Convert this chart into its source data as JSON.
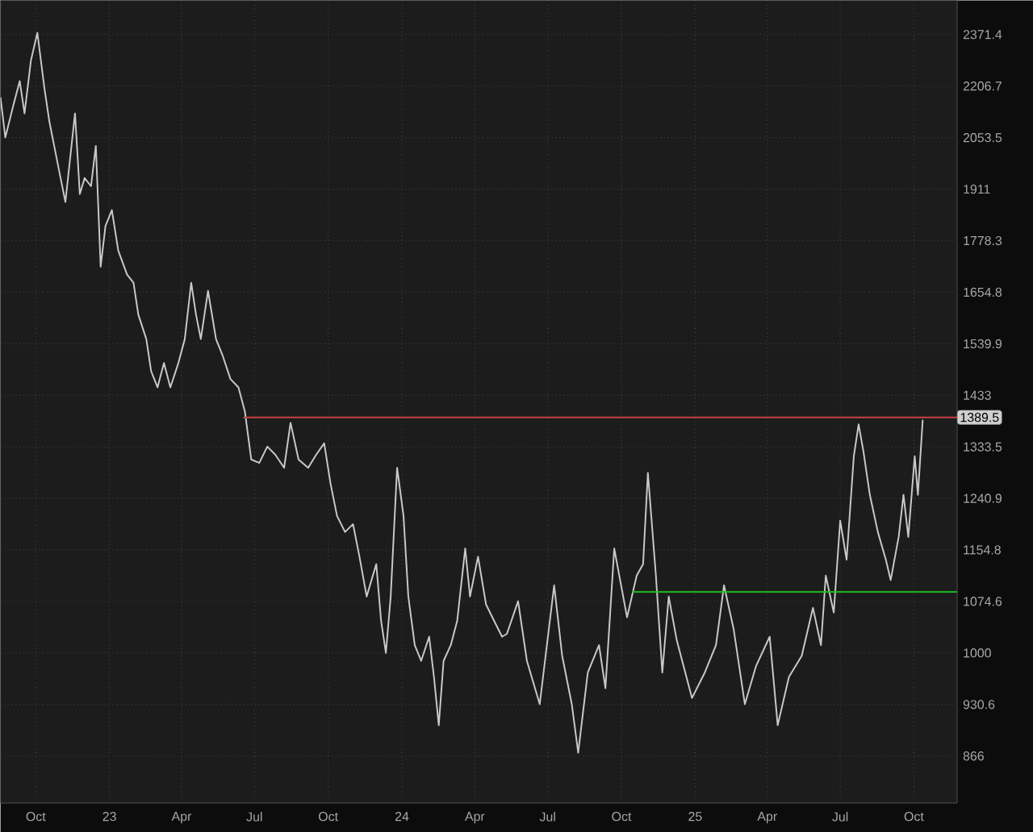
{
  "chart_data": {
    "type": "line",
    "log": true,
    "grid": true,
    "xlim": [
      "2022-08-18",
      "2025-11-24"
    ],
    "ylim": [
      811,
      2487
    ],
    "xticks": [
      {
        "value": "2022-10-01",
        "label": "Oct"
      },
      {
        "value": "2023-01-01",
        "label": "23"
      },
      {
        "value": "2023-04-01",
        "label": "Apr"
      },
      {
        "value": "2023-07-01",
        "label": "Jul"
      },
      {
        "value": "2023-10-01",
        "label": "Oct"
      },
      {
        "value": "2024-01-01",
        "label": "24"
      },
      {
        "value": "2024-04-01",
        "label": "Apr"
      },
      {
        "value": "2024-07-01",
        "label": "Jul"
      },
      {
        "value": "2024-10-01",
        "label": "Oct"
      },
      {
        "value": "2025-01-01",
        "label": "25"
      },
      {
        "value": "2025-04-01",
        "label": "Apr"
      },
      {
        "value": "2025-07-01",
        "label": "Jul"
      },
      {
        "value": "2025-10-01",
        "label": "Oct"
      }
    ],
    "yticks": [
      866,
      930.6,
      1000,
      1074.6,
      1154.8,
      1240.9,
      1333.5,
      1433,
      1539.9,
      1654.8,
      1778.3,
      1911,
      2053.5,
      2206.7,
      2371.4
    ],
    "series": [
      {
        "color": "#c8c8c8",
        "x": [
          "2022-08-18",
          "2022-08-24",
          "2022-09-03",
          "2022-09-11",
          "2022-09-17",
          "2022-09-25",
          "2022-10-03",
          "2022-10-12",
          "2022-10-18",
          "2022-10-24",
          "2022-11-01",
          "2022-11-07",
          "2022-11-19",
          "2022-11-25",
          "2022-12-01",
          "2022-12-09",
          "2022-12-15",
          "2022-12-21",
          "2022-12-27",
          "2023-01-04",
          "2023-01-12",
          "2023-01-23",
          "2023-01-31",
          "2023-02-06",
          "2023-02-16",
          "2023-02-22",
          "2023-03-02",
          "2023-03-10",
          "2023-03-18",
          "2023-03-28",
          "2023-04-05",
          "2023-04-13",
          "2023-04-19",
          "2023-04-25",
          "2023-05-04",
          "2023-05-14",
          "2023-05-22",
          "2023-06-01",
          "2023-06-11",
          "2023-06-19",
          "2023-06-27",
          "2023-07-07",
          "2023-07-17",
          "2023-07-27",
          "2023-08-07",
          "2023-08-15",
          "2023-08-25",
          "2023-09-06",
          "2023-09-16",
          "2023-09-26",
          "2023-10-04",
          "2023-10-12",
          "2023-10-22",
          "2023-11-01",
          "2023-11-09",
          "2023-11-18",
          "2023-11-24",
          "2023-11-30",
          "2023-12-06",
          "2023-12-12",
          "2023-12-18",
          "2023-12-26",
          "2024-01-03",
          "2024-01-09",
          "2024-01-17",
          "2024-01-25",
          "2024-02-04",
          "2024-02-10",
          "2024-02-16",
          "2024-02-22",
          "2024-03-02",
          "2024-03-10",
          "2024-03-20",
          "2024-03-26",
          "2024-04-05",
          "2024-04-15",
          "2024-04-25",
          "2024-05-05",
          "2024-05-11",
          "2024-05-25",
          "2024-06-05",
          "2024-06-21",
          "2024-07-09",
          "2024-07-19",
          "2024-07-31",
          "2024-08-08",
          "2024-08-20",
          "2024-09-03",
          "2024-09-11",
          "2024-09-22",
          "2024-10-08",
          "2024-10-20",
          "2024-10-28",
          "2024-11-03",
          "2024-11-13",
          "2024-11-21",
          "2024-11-29",
          "2024-12-09",
          "2024-12-28",
          "2025-01-13",
          "2025-01-27",
          "2025-02-06",
          "2025-02-18",
          "2025-03-04",
          "2025-03-18",
          "2025-04-04",
          "2025-04-14",
          "2025-04-28",
          "2025-05-14",
          "2025-05-28",
          "2025-06-07",
          "2025-06-13",
          "2025-06-23",
          "2025-07-01",
          "2025-07-09",
          "2025-07-18",
          "2025-07-24",
          "2025-07-30",
          "2025-08-07",
          "2025-08-17",
          "2025-08-27",
          "2025-09-02",
          "2025-09-12",
          "2025-09-18",
          "2025-09-24",
          "2025-10-02",
          "2025-10-06",
          "2025-10-12"
        ],
        "values": [
          2172,
          2054,
          2148,
          2222,
          2124,
          2287,
          2377,
          2197,
          2100,
          2030,
          1941,
          1877,
          2124,
          1898,
          1941,
          1919,
          2030,
          1715,
          1815,
          1856,
          1754,
          1696,
          1677,
          1604,
          1550,
          1482,
          1449,
          1499,
          1449,
          1499,
          1550,
          1677,
          1604,
          1550,
          1658,
          1550,
          1516,
          1466,
          1449,
          1401,
          1310,
          1304,
          1334,
          1319,
          1295,
          1379,
          1310,
          1295,
          1319,
          1340,
          1266,
          1211,
          1184,
          1197,
          1144,
          1082,
          1107,
          1132,
          1046,
          1000,
          1082,
          1295,
          1211,
          1082,
          1011,
          989,
          1023,
          967,
          904,
          989,
          1011,
          1046,
          1157,
          1082,
          1144,
          1070,
          1046,
          1023,
          1027,
          1075,
          989,
          931,
          1099,
          996,
          931,
          870,
          973,
          1011,
          952,
          1157,
          1051,
          1114,
          1132,
          1286,
          1114,
          973,
          1082,
          1018,
          939,
          973,
          1011,
          1099,
          1034,
          931,
          982,
          1023,
          904,
          967,
          996,
          1065,
          1011,
          1114,
          1058,
          1203,
          1139,
          1316,
          1376,
          1325,
          1247,
          1184,
          1139,
          1107,
          1176,
          1247,
          1176,
          1316,
          1247,
          1385
        ]
      },
      {
        "color": "#c84040",
        "x": [
          "2023-06-17",
          "2025-11-24"
        ],
        "values": [
          1389.5,
          1389.5
        ],
        "value_labels": [
          null,
          "1389.5"
        ]
      },
      {
        "color": "#20c020",
        "x": [
          "2024-10-14",
          "2025-11-24"
        ],
        "values": [
          1089,
          1089
        ]
      }
    ]
  }
}
